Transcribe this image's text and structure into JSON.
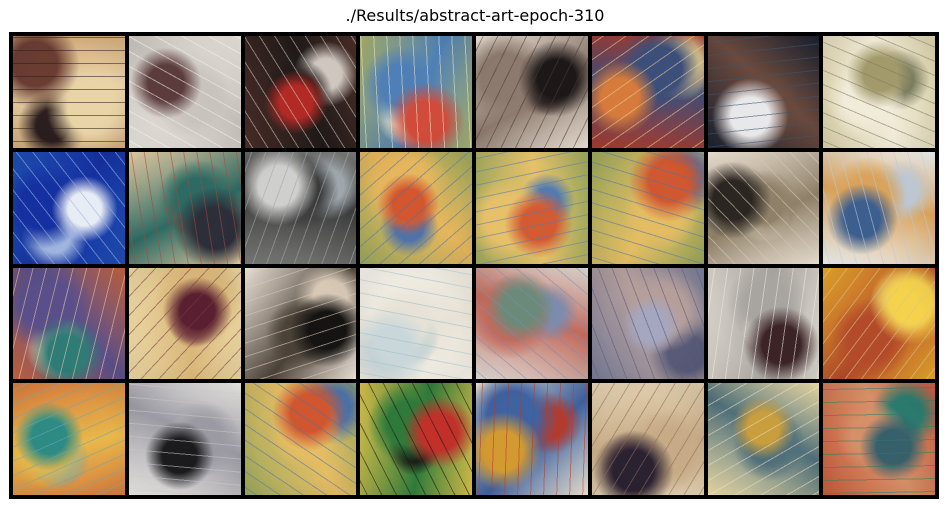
{
  "figure": {
    "title": "./Results/abstract-art-epoch-310"
  },
  "tiles": [
    {
      "bg": "#d3ad7c",
      "a": "#6a3d33",
      "b": "#e9d4a8",
      "c": "#2b1e1e"
    },
    {
      "bg": "#e6e2dc",
      "a": "#5b3b3b",
      "b": "#c9c3be",
      "c": "#f2efe9"
    },
    {
      "bg": "#4a2d27",
      "a": "#b32a24",
      "b": "#1f1a19",
      "c": "#cfc7bf"
    },
    {
      "bg": "#a8b068",
      "a": "#d04b3a",
      "b": "#4f7fb6",
      "c": "#e6e6d0"
    },
    {
      "bg": "#ede3d7",
      "a": "#1d1818",
      "b": "#8d7a6e",
      "c": "#4a3b35"
    },
    {
      "bg": "#a63b2e",
      "a": "#d77b3c",
      "b": "#3c4e7a",
      "c": "#e6cf93"
    },
    {
      "bg": "#1a2130",
      "a": "#e8e8ea",
      "b": "#6b4a3d",
      "c": "#3c5570"
    },
    {
      "bg": "#d8cfa8",
      "a": "#a39a6c",
      "b": "#f1ebd9",
      "c": "#7b7c5e"
    },
    {
      "bg": "#1f4fb3",
      "a": "#e8ecf5",
      "b": "#1530a0",
      "c": "#9fb5df"
    },
    {
      "bg": "#e9cfa6",
      "a": "#2c2f3a",
      "b": "#2d6a63",
      "c": "#a24a3b"
    },
    {
      "bg": "#7b7b79",
      "a": "#cfcfcd",
      "b": "#3b3b3b",
      "c": "#a0a8ad"
    },
    {
      "bg": "#9aa65b",
      "a": "#d3562e",
      "b": "#e6b65c",
      "c": "#4e72aa"
    },
    {
      "bg": "#9da95d",
      "a": "#d35b33",
      "b": "#e7c16a",
      "c": "#527bb3"
    },
    {
      "bg": "#98a55a",
      "a": "#cf5830",
      "b": "#e4bd63",
      "c": "#4f75ac"
    },
    {
      "bg": "#efe6d7",
      "a": "#2b2622",
      "b": "#8f8068",
      "c": "#d3c9b5"
    },
    {
      "bg": "#eef0f2",
      "a": "#3d5f8f",
      "b": "#d9a35b",
      "c": "#bcc7d3"
    },
    {
      "bg": "#c2633f",
      "a": "#2f7c77",
      "b": "#5a4f8a",
      "c": "#e7c8a6"
    },
    {
      "bg": "#ead6a2",
      "a": "#5a1f30",
      "b": "#d9b779",
      "c": "#7a3a45"
    },
    {
      "bg": "#f3e9df",
      "a": "#161413",
      "b": "#4a4137",
      "c": "#d8c9b7"
    },
    {
      "bg": "#f3efe7",
      "a": "#c9d7da",
      "b": "#e8e2d6",
      "c": "#9fc0c8"
    },
    {
      "bg": "#dfdcd6",
      "a": "#6b8a7a",
      "b": "#c26a5c",
      "c": "#7d8cae"
    },
    {
      "bg": "#777b96",
      "a": "#a5a6bf",
      "b": "#b69f9b",
      "c": "#585a78"
    },
    {
      "bg": "#d9d4cc",
      "a": "#3c2426",
      "b": "#a8a49f",
      "c": "#e9e6e1"
    },
    {
      "bg": "#e5a92b",
      "a": "#f5d24c",
      "b": "#b34a2a",
      "c": "#d7c590"
    },
    {
      "bg": "#d67b3e",
      "a": "#2e8b84",
      "b": "#e8b84a",
      "c": "#6aa6b0"
    },
    {
      "bg": "#eceae6",
      "a": "#1b1b1e",
      "b": "#9b9aa3",
      "c": "#c7c5c4"
    },
    {
      "bg": "#9aa85c",
      "a": "#d0562f",
      "b": "#e6bd63",
      "c": "#4d73aa"
    },
    {
      "bg": "#d9c04b",
      "a": "#c2302a",
      "b": "#2f7a3a",
      "c": "#181613"
    },
    {
      "bg": "#efe7d2",
      "a": "#d39a32",
      "b": "#3f62a1",
      "c": "#b33b2e"
    },
    {
      "bg": "#e3d2b2",
      "a": "#2a2131",
      "b": "#c7ab86",
      "c": "#8f6a5a"
    },
    {
      "bg": "#f0dfa8",
      "a": "#c99e3d",
      "b": "#4f6f7a",
      "c": "#eadbc3"
    },
    {
      "bg": "#c45b3b",
      "a": "#37606a",
      "b": "#d69068",
      "c": "#2c7a6e"
    }
  ]
}
